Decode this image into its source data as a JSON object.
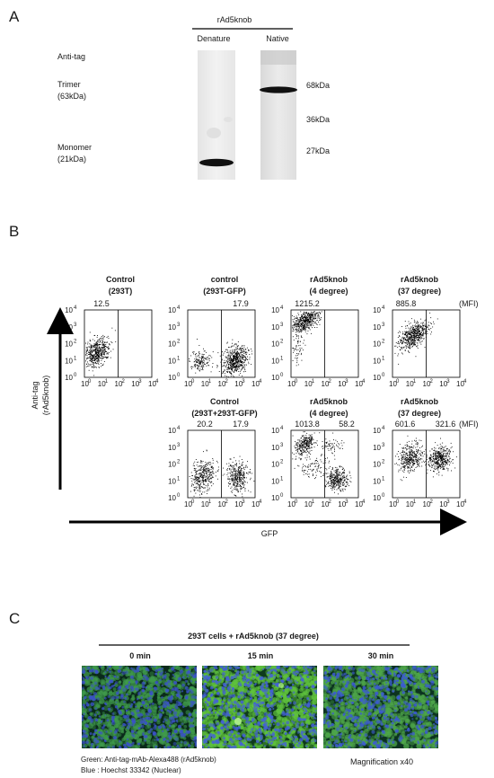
{
  "panelA": {
    "letter": "A",
    "header": "rAd5knob",
    "lanes": [
      "Denature",
      "Native"
    ],
    "left_labels": {
      "antitag": "Anti-tag",
      "trimer": [
        "Trimer",
        "(63kDa)"
      ],
      "monomer": [
        "Monomer",
        "(21kDa)"
      ]
    },
    "markers": [
      "68kDa",
      "36kDa",
      "27kDa"
    ]
  },
  "panelB": {
    "letter": "B",
    "mfi_label": "(MFI)",
    "y_axis": [
      "Anti-tag",
      "(rAd5knob)"
    ],
    "x_axis": "GFP",
    "tick_labels": [
      "10",
      "10",
      "10",
      "10",
      "10"
    ],
    "tick_exponents": [
      "0",
      "1",
      "2",
      "3",
      "4"
    ],
    "row1": [
      {
        "title": [
          "Control",
          "(293T)"
        ],
        "mfi": [
          "12.5",
          ""
        ]
      },
      {
        "title": [
          "control",
          "(293T-GFP)"
        ],
        "mfi": [
          "",
          "17.9"
        ]
      },
      {
        "title": [
          "rAd5knob",
          "(4 degree)"
        ],
        "mfi": [
          "1215.2",
          ""
        ]
      },
      {
        "title": [
          "rAd5knob",
          "(37 degree)"
        ],
        "mfi": [
          "885.8",
          ""
        ]
      }
    ],
    "row2": [
      {
        "title": [
          "Control",
          "(293T+293T-GFP)"
        ],
        "mfi": [
          "20.2",
          "17.9"
        ]
      },
      {
        "title": [
          "rAd5knob",
          "(4 degree)"
        ],
        "mfi": [
          "1013.8",
          "58.2"
        ]
      },
      {
        "title": [
          "rAd5knob",
          "(37 degree)"
        ],
        "mfi": [
          "601.6",
          "321.6"
        ]
      }
    ]
  },
  "panelC": {
    "letter": "C",
    "header": "293T cells + rAd5knob (37 degree)",
    "times": [
      "0 min",
      "15 min",
      "30 min"
    ],
    "legend": [
      "Green: Anti-tag-mAb-Alexa488 (rAd5knob)",
      "Blue   : Hoechst 33342 (Nuclear)"
    ],
    "magnification": "Magnification x40"
  }
}
